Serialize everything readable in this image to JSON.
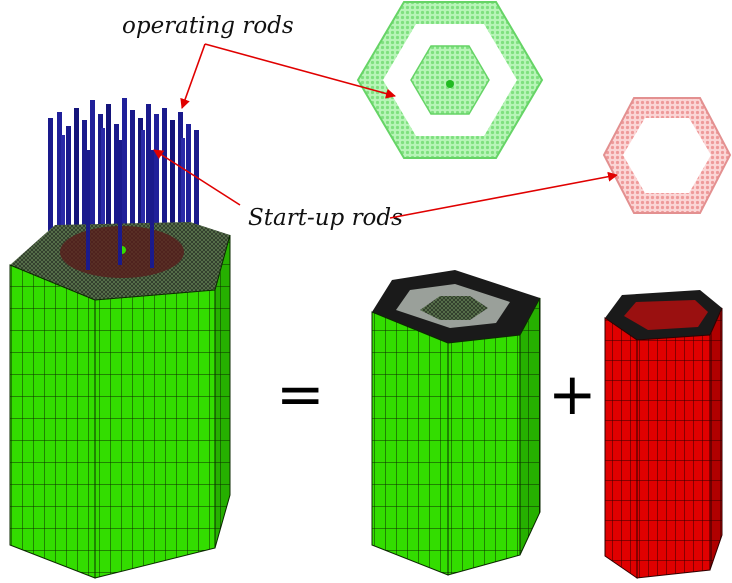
{
  "labels": {
    "operating_rods": "operating rods",
    "startup_rods": "Start-up rods"
  },
  "operators": {
    "equals": "=",
    "plus": "+"
  },
  "colors": {
    "core_green": "#33dd00",
    "rod_blue": "#1a1a8c",
    "ring_red": "#dd0000",
    "map_green": "#88ee88",
    "map_pink": "#f2a0a0",
    "arrow_red": "#e00000",
    "mesh_dark": "#111111"
  }
}
